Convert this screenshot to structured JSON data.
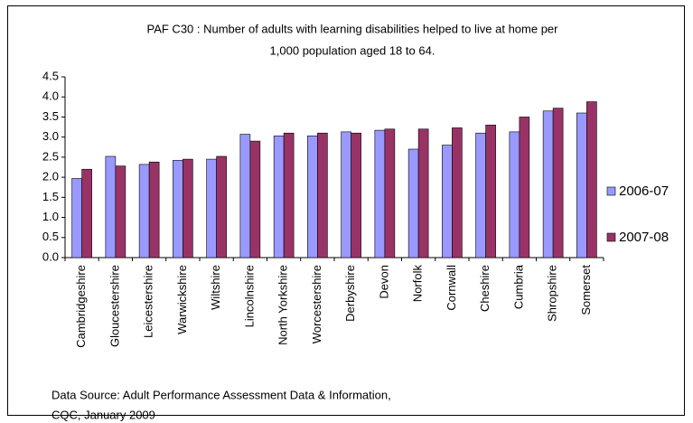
{
  "chart_data": {
    "type": "bar",
    "title": [
      "PAF C30 : Number of adults with learning disabilities helped to live at home per",
      "1,000 population aged 18 to 64."
    ],
    "categories": [
      "Cambridgeshire",
      "Gloucestershire",
      "Leicestershire",
      "Warwickshire",
      "Wiltshire",
      "Lincolnshire",
      "North Yorkshire",
      "Worcestershire",
      "Derbyshire",
      "Devon",
      "Norfolk",
      "Cornwall",
      "Cheshire",
      "Cumbria",
      "Shropshire",
      "Somerset"
    ],
    "series": [
      {
        "name": "2006-07",
        "color": "#9999ff",
        "values": [
          1.97,
          2.52,
          2.32,
          2.42,
          2.45,
          3.07,
          3.03,
          3.03,
          3.13,
          3.17,
          2.7,
          2.8,
          3.1,
          3.13,
          3.65,
          3.6
        ]
      },
      {
        "name": "2007-08",
        "color": "#993366",
        "values": [
          2.2,
          2.28,
          2.38,
          2.45,
          2.52,
          2.9,
          3.1,
          3.1,
          3.1,
          3.2,
          3.2,
          3.23,
          3.3,
          3.5,
          3.72,
          3.88
        ]
      }
    ],
    "ylim": [
      0,
      4.5
    ],
    "yticks": [
      {
        "value": 0,
        "label": "0.0"
      },
      {
        "value": 0.5,
        "label": "0.5"
      },
      {
        "value": 1,
        "label": "1.0"
      },
      {
        "value": 1.5,
        "label": "1.5"
      },
      {
        "value": 2,
        "label": "2.0"
      },
      {
        "value": 2.5,
        "label": "2.5"
      },
      {
        "value": 3,
        "label": "3.0"
      },
      {
        "value": 3.5,
        "label": "3.5"
      },
      {
        "value": 4,
        "label": "4.0"
      },
      {
        "value": 4.5,
        "label": "4.5"
      }
    ],
    "legend": "right",
    "source": [
      "Data Source: Adult Performance Assessment Data & Information,",
      "CQC, January 2009"
    ]
  }
}
